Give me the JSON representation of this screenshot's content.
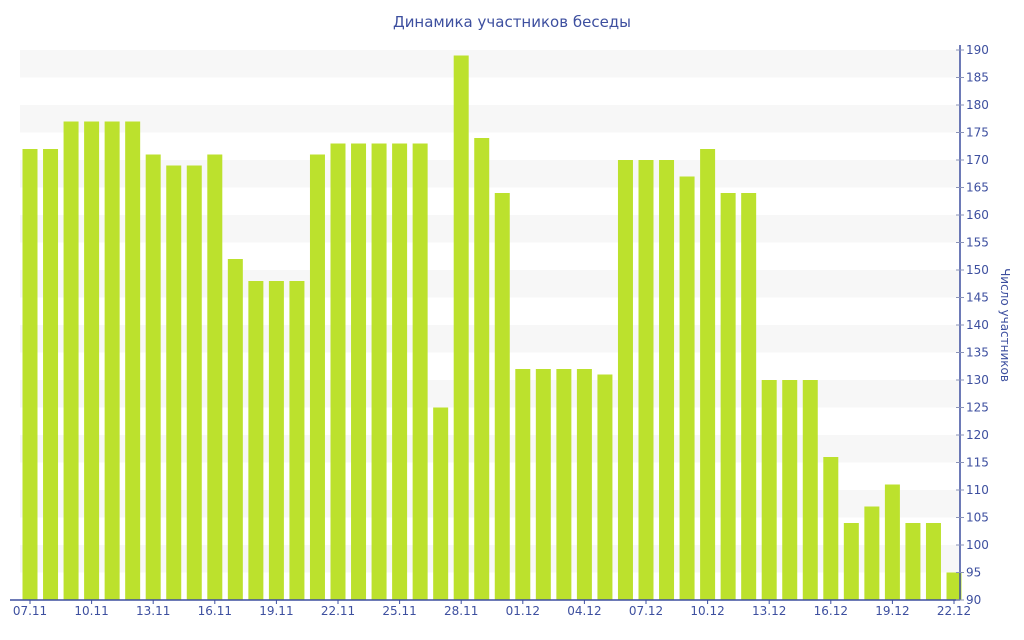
{
  "chart_data": {
    "type": "bar",
    "title": "Динамика участников беседы",
    "xlabel": "",
    "ylabel": "Число участников",
    "ylim": [
      90,
      190
    ],
    "ytick_step": 5,
    "y_axis_position": "right",
    "grid": "alternating horizontal bands",
    "bar_color": "#bce12d",
    "axis_color": "#3d4f9f",
    "x_tick_labels": [
      "07.11",
      "10.11",
      "13.11",
      "16.11",
      "19.11",
      "22.11",
      "25.11",
      "28.11",
      "01.12",
      "04.12",
      "07.12",
      "10.12",
      "13.12",
      "16.12",
      "19.12",
      "22.12"
    ],
    "categories": [
      "07.11",
      "08.11",
      "09.11",
      "10.11",
      "11.11",
      "12.11",
      "13.11",
      "14.11",
      "15.11",
      "16.11",
      "17.11",
      "18.11",
      "19.11",
      "20.11",
      "21.11",
      "22.11",
      "23.11",
      "24.11",
      "25.11",
      "26.11",
      "27.11",
      "28.11",
      "29.11",
      "30.11",
      "01.12",
      "02.12",
      "03.12",
      "04.12",
      "05.12",
      "06.12",
      "07.12",
      "08.12",
      "09.12",
      "10.12",
      "11.12",
      "12.12",
      "13.12",
      "14.12",
      "15.12",
      "16.12",
      "17.12",
      "18.12",
      "19.12",
      "20.12",
      "21.12",
      "22.12"
    ],
    "values": [
      172,
      172,
      177,
      177,
      177,
      177,
      171,
      169,
      169,
      171,
      152,
      148,
      148,
      148,
      171,
      173,
      173,
      173,
      173,
      173,
      125,
      189,
      174,
      164,
      132,
      132,
      132,
      132,
      131,
      170,
      170,
      170,
      167,
      172,
      164,
      164,
      130,
      130,
      130,
      116,
      104,
      107,
      111,
      104,
      104,
      95
    ]
  }
}
